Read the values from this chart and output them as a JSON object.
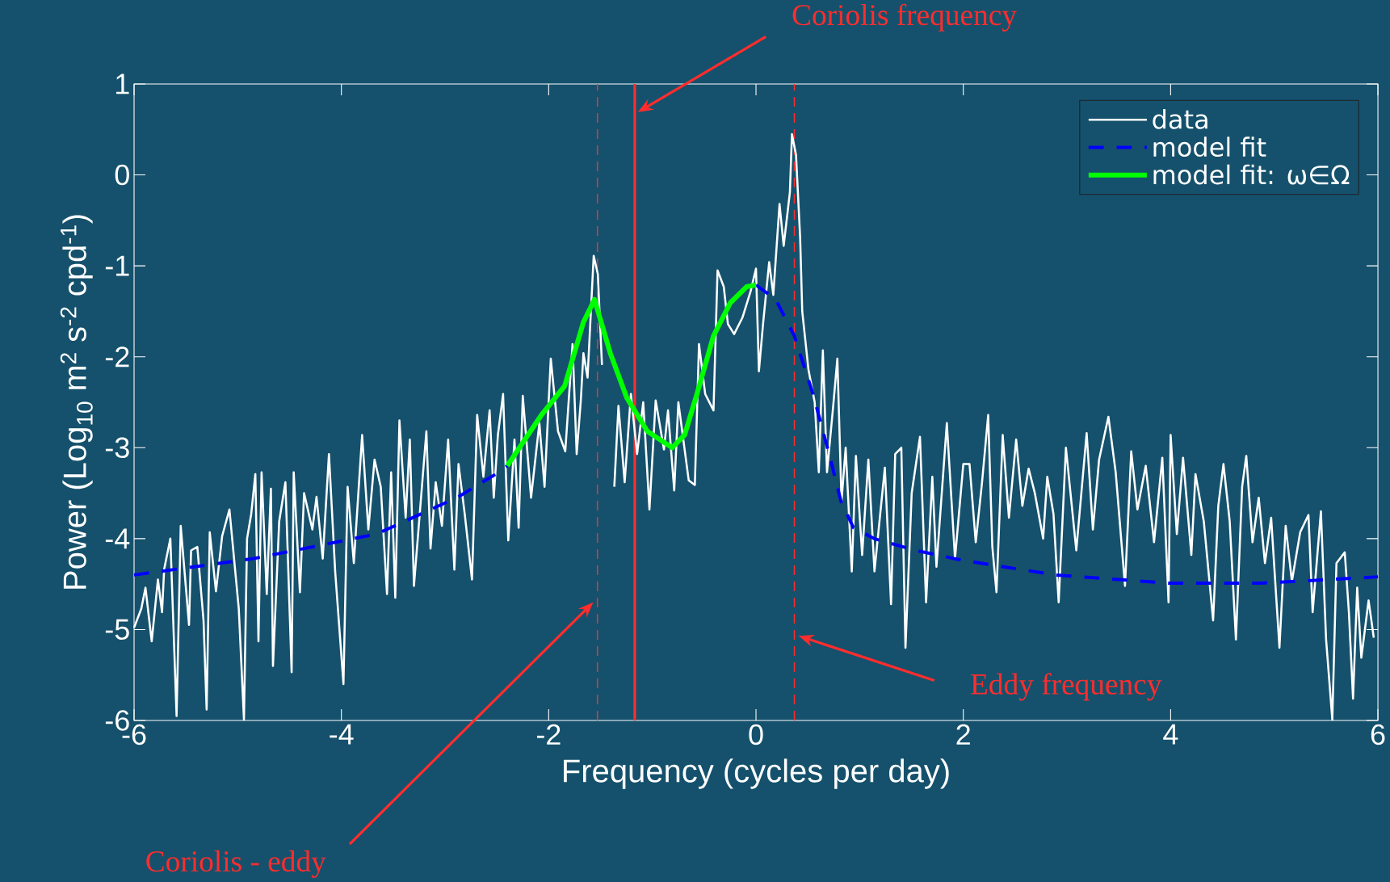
{
  "chart_data": {
    "type": "line",
    "xlabel": "Frequency (cycles per day)",
    "ylabel": "Power (Log$_{10}$ m$^{2}$ s$^{-2}$ cpd$^{-1}$)",
    "xlim": [
      -6,
      6
    ],
    "ylim": [
      -6,
      1
    ],
    "xticks": [
      -6,
      -4,
      -2,
      0,
      2,
      4,
      6
    ],
    "yticks": [
      -6,
      -5,
      -4,
      -3,
      -2,
      -1,
      0,
      1
    ],
    "legend": "top right",
    "series": [
      {
        "name": "data",
        "color": "#ffffff",
        "line_style": "solid",
        "x": [
          -6.0,
          -5.93,
          -5.89,
          -5.83,
          -5.77,
          -5.73,
          -5.71,
          -5.65,
          -5.59,
          -5.55,
          -5.47,
          -5.45,
          -5.39,
          -5.33,
          -5.3,
          -5.27,
          -5.21,
          -5.15,
          -5.08,
          -4.99,
          -4.94,
          -4.91,
          -4.87,
          -4.83,
          -4.8,
          -4.77,
          -4.72,
          -4.68,
          -4.66,
          -4.6,
          -4.54,
          -4.48,
          -4.46,
          -4.4,
          -4.36,
          -4.28,
          -4.24,
          -4.18,
          -4.12,
          -4.06,
          -3.98,
          -3.94,
          -3.88,
          -3.8,
          -3.74,
          -3.68,
          -3.62,
          -3.56,
          -3.52,
          -3.48,
          -3.44,
          -3.38,
          -3.34,
          -3.3,
          -3.18,
          -3.14,
          -3.09,
          -3.03,
          -2.97,
          -2.91,
          -2.87,
          -2.81,
          -2.74,
          -2.69,
          -2.63,
          -2.57,
          -2.53,
          -2.49,
          -2.44,
          -2.39,
          -2.33,
          -2.29,
          -2.25,
          -2.17,
          -2.09,
          -2.04,
          -1.98,
          -1.91,
          -1.84,
          -1.77,
          -1.73,
          -1.69,
          -1.665,
          -1.625,
          -1.566,
          -1.526,
          -1.486,
          -1.446,
          -1.367,
          -1.327,
          -1.267,
          -1.207,
          -1.147,
          -1.088,
          -1.028,
          -0.968,
          -0.888,
          -0.849,
          -0.789,
          -0.749,
          -0.649,
          -0.59,
          -0.55,
          -0.49,
          -0.41,
          -0.371,
          -0.311,
          -0.271,
          -0.211,
          -0.131,
          -0.052,
          0.0,
          0.028,
          0.068,
          0.127,
          0.167,
          0.227,
          0.267,
          0.327,
          0.347,
          0.386,
          0.426,
          0.446,
          0.506,
          0.566,
          0.606,
          0.645,
          0.685,
          0.745,
          0.785,
          0.825,
          0.865,
          0.924,
          0.964,
          1.024,
          1.084,
          1.143,
          1.243,
          1.303,
          1.343,
          1.402,
          1.442,
          1.502,
          1.582,
          1.641,
          1.701,
          1.741,
          1.841,
          1.92,
          2.0,
          2.06,
          2.12,
          2.18,
          2.24,
          2.28,
          2.32,
          2.38,
          2.44,
          2.51,
          2.57,
          2.63,
          2.69,
          2.77,
          2.81,
          2.87,
          2.92,
          2.99,
          3.09,
          3.19,
          3.25,
          3.31,
          3.4,
          3.47,
          3.56,
          3.62,
          3.68,
          3.76,
          3.84,
          3.92,
          3.98,
          4.0,
          4.06,
          4.12,
          4.2,
          4.24,
          4.32,
          4.41,
          4.46,
          4.51,
          4.57,
          4.63,
          4.69,
          4.73,
          4.79,
          4.85,
          4.91,
          4.97,
          5.05,
          5.11,
          5.17,
          5.25,
          5.33,
          5.37,
          5.45,
          5.5,
          5.56,
          5.6,
          5.68,
          5.72,
          5.76,
          5.8,
          5.84,
          5.91,
          5.96
        ],
        "values": [
          -4.98,
          -4.77,
          -4.54,
          -5.13,
          -4.45,
          -4.81,
          -4.34,
          -4.0,
          -5.95,
          -3.86,
          -4.95,
          -4.13,
          -4.09,
          -4.9,
          -5.88,
          -3.93,
          -4.58,
          -3.97,
          -3.68,
          -4.77,
          -5.99,
          -4.0,
          -3.73,
          -3.29,
          -5.13,
          -3.27,
          -4.61,
          -3.45,
          -5.4,
          -3.81,
          -3.38,
          -5.47,
          -3.27,
          -4.59,
          -3.5,
          -3.9,
          -3.54,
          -4.22,
          -3.07,
          -4.36,
          -5.6,
          -3.43,
          -4.27,
          -2.86,
          -3.9,
          -3.13,
          -3.43,
          -4.61,
          -3.27,
          -4.65,
          -2.7,
          -3.77,
          -2.91,
          -4.52,
          -2.82,
          -4.11,
          -3.38,
          -3.86,
          -2.91,
          -4.34,
          -3.18,
          -3.73,
          -4.45,
          -2.64,
          -3.32,
          -2.59,
          -3.55,
          -2.86,
          -2.41,
          -4.02,
          -2.91,
          -3.88,
          -2.43,
          -3.55,
          -2.73,
          -3.43,
          -2.02,
          -2.82,
          -3.04,
          -1.86,
          -3.07,
          -2.48,
          -1.96,
          -2.23,
          -0.89,
          -1.09,
          -2.09,
          null,
          -3.43,
          -2.54,
          -3.38,
          -2.41,
          -3.07,
          -2.5,
          -3.68,
          -2.48,
          -3.02,
          -2.59,
          -3.47,
          -2.5,
          -3.36,
          -3.41,
          -1.86,
          -2.41,
          -2.59,
          -1.05,
          -1.23,
          -1.64,
          -1.75,
          -1.57,
          -1.28,
          -1.03,
          -2.16,
          -1.64,
          -0.96,
          -1.32,
          -0.32,
          -0.78,
          -0.19,
          0.45,
          0.22,
          -0.69,
          -1.5,
          -2.14,
          -2.5,
          -3.27,
          -1.93,
          -3.27,
          -2.54,
          -2.02,
          -3.59,
          -3.0,
          -4.36,
          -3.09,
          -4.18,
          -3.13,
          -4.36,
          -3.22,
          -4.72,
          -3.07,
          -3.0,
          -5.2,
          -3.5,
          -2.88,
          -4.7,
          -3.32,
          -4.31,
          -2.73,
          -4.22,
          -3.18,
          -3.18,
          -4.04,
          -3.39,
          -2.64,
          -4.09,
          -4.59,
          -2.86,
          -3.77,
          -2.91,
          -3.64,
          -3.23,
          -3.5,
          -4.0,
          -3.32,
          -3.73,
          -4.7,
          -3.0,
          -4.13,
          -2.84,
          -3.9,
          -3.13,
          -2.66,
          -3.27,
          -4.52,
          -3.04,
          -3.68,
          -3.2,
          -4.04,
          -3.11,
          -4.7,
          -2.86,
          -3.95,
          -3.11,
          -4.18,
          -3.29,
          -3.81,
          -4.9,
          -3.64,
          -3.18,
          -3.81,
          -5.11,
          -3.43,
          -3.09,
          -4.04,
          -3.55,
          -4.27,
          -3.77,
          -5.2,
          -3.86,
          -4.47,
          -3.93,
          -3.74,
          -4.81,
          -3.7,
          -5.11,
          -5.99,
          -4.27,
          -4.15,
          -4.81,
          -5.76,
          -4.54,
          -5.31,
          -4.68,
          -5.09
        ]
      },
      {
        "name": "model fit",
        "color": "#0000ff",
        "line_style": "dashed",
        "x": [
          -6.0,
          -4.85,
          -3.66,
          -2.87,
          -2.51,
          -2.4,
          -1.2,
          0.0,
          0.19,
          0.37,
          0.55,
          0.71,
          0.82,
          0.94,
          1.14,
          1.54,
          2.0,
          2.89,
          3.98,
          4.87,
          5.86,
          6.0
        ],
        "values": [
          -4.4,
          -4.22,
          -3.95,
          -3.54,
          -3.29,
          -3.2,
          null,
          -1.21,
          -1.37,
          -1.77,
          -2.41,
          -3.09,
          -3.59,
          -3.88,
          -4.0,
          -4.13,
          -4.24,
          -4.4,
          -4.49,
          -4.49,
          -4.43,
          -4.42
        ]
      },
      {
        "name": "model fit: ω∈Ω",
        "color": "#00ff00",
        "line_style": "solid",
        "x": [
          -2.4,
          -2.07,
          -1.845,
          -1.665,
          -1.558,
          -1.406,
          -1.247,
          -1.048,
          -0.809,
          -0.689,
          -0.57,
          -0.41,
          -0.25,
          -0.09,
          0.0
        ],
        "values": [
          -3.2,
          -2.64,
          -2.32,
          -1.62,
          -1.37,
          -1.96,
          -2.45,
          -2.82,
          -3.0,
          -2.86,
          -2.41,
          -1.77,
          -1.41,
          -1.23,
          -1.21
        ]
      }
    ],
    "ref_lines": [
      {
        "axis": "x",
        "value": -1.17,
        "label": "Coriolis frequency",
        "color": "#ff2d2d",
        "line_style": "solid"
      },
      {
        "axis": "x",
        "value": 0.37,
        "label": "Eddy frequency",
        "color": "#ff2d2d",
        "line_style": "dashed"
      },
      {
        "axis": "x",
        "value": -1.53,
        "label": "Coriolis - eddy",
        "color": "#ff2d2d",
        "line_style": "dashed"
      }
    ]
  }
}
